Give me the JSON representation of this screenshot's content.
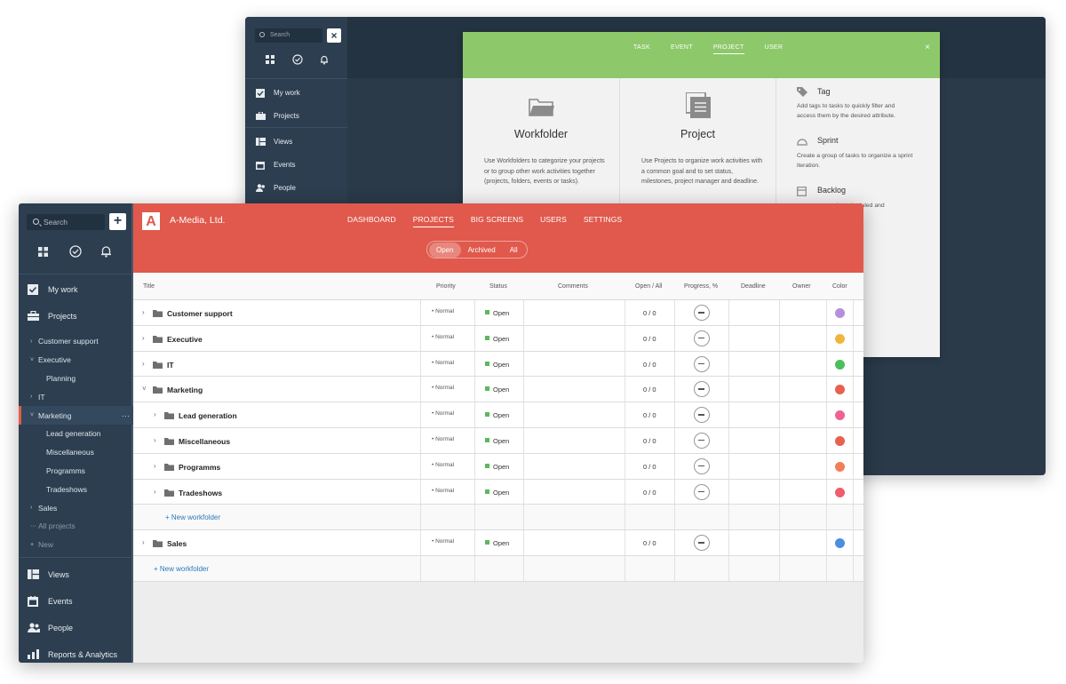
{
  "back": {
    "search_placeholder": "Search",
    "close": "×",
    "nav": [
      "My work",
      "Projects",
      "Views",
      "Events",
      "People"
    ],
    "dialog": {
      "tabs": [
        "TASK",
        "EVENT",
        "PROJECT",
        "USER"
      ],
      "close": "×",
      "workfolder_title": "Workfolder",
      "workfolder_desc": "Use Workfolders to categorize your projects or to group other work activities together (projects, folders, events or tasks).",
      "project_title": "Project",
      "project_desc": "Use Projects to organize work activities with a common goal and to set status, milestones, project manager and deadline.",
      "tag_title": "Tag",
      "tag_desc": "Add tags to tasks to quickly filter and access them by the desired attribute.",
      "sprint_title": "Sprint",
      "sprint_desc": "Create a group of tasks to organize a sprint iteration.",
      "backlog_title": "Backlog",
      "backlog_desc": "be scheduled and"
    }
  },
  "sidebar": {
    "search_placeholder": "Search",
    "plus": "+",
    "nav_top": [
      "My work",
      "Projects"
    ],
    "tree": [
      {
        "label": "Customer support",
        "chev": "›"
      },
      {
        "label": "Executive",
        "chev": "˅"
      },
      {
        "label": "Planning"
      },
      {
        "label": "IT",
        "chev": "›"
      },
      {
        "label": "Marketing",
        "chev": "˅",
        "dots": "···"
      },
      {
        "label": "Lead generation"
      },
      {
        "label": "Miscellaneous"
      },
      {
        "label": "Programms"
      },
      {
        "label": "Tradeshows"
      },
      {
        "label": "Sales",
        "chev": "›"
      },
      {
        "label": "All projects",
        "chev": "···"
      },
      {
        "label": "New",
        "chev": "+"
      }
    ],
    "nav_bottom": [
      "Views",
      "Events",
      "People",
      "Reports & Analytics"
    ]
  },
  "header": {
    "logo": "A",
    "company": "A-Media, Ltd.",
    "nav": [
      "DASHBOARD",
      "PROJECTS",
      "BIG SCREENS",
      "USERS",
      "SETTINGS"
    ],
    "filters": [
      "Open",
      "Archived",
      "All"
    ]
  },
  "table": {
    "columns": [
      "Title",
      "Priority",
      "Status",
      "Comments",
      "Open / All",
      "Progress, %",
      "Deadline",
      "Owner",
      "Color"
    ],
    "rows": [
      {
        "name": "Customer support",
        "priority": "• Normal",
        "status": "Open",
        "open_all": "0 / 0",
        "color": "#b48fdc"
      },
      {
        "name": "Executive",
        "priority": "• Normal",
        "status": "Open",
        "open_all": "0 / 0",
        "color": "#f0b63c"
      },
      {
        "name": "IT",
        "priority": "• Normal",
        "status": "Open",
        "open_all": "0 / 0",
        "color": "#4cbf5a"
      },
      {
        "name": "Marketing",
        "priority": "• Normal",
        "status": "Open",
        "open_all": "0 / 0",
        "color": "#e8604f"
      },
      {
        "name": "Lead generation",
        "priority": "• Normal",
        "status": "Open",
        "open_all": "0 / 0",
        "color": "#f06292"
      },
      {
        "name": "Miscellaneous",
        "priority": "• Normal",
        "status": "Open",
        "open_all": "0 / 0",
        "color": "#e8604f"
      },
      {
        "name": "Programms",
        "priority": "• Normal",
        "status": "Open",
        "open_all": "0 / 0",
        "color": "#f37e55"
      },
      {
        "name": "Tradeshows",
        "priority": "• Normal",
        "status": "Open",
        "open_all": "0 / 0",
        "color": "#ed5d6c"
      },
      {
        "name": "Sales",
        "priority": "• Normal",
        "status": "Open",
        "open_all": "0 / 0",
        "color": "#4a8fe0"
      }
    ],
    "new_workfolder": "+ New workfolder"
  }
}
